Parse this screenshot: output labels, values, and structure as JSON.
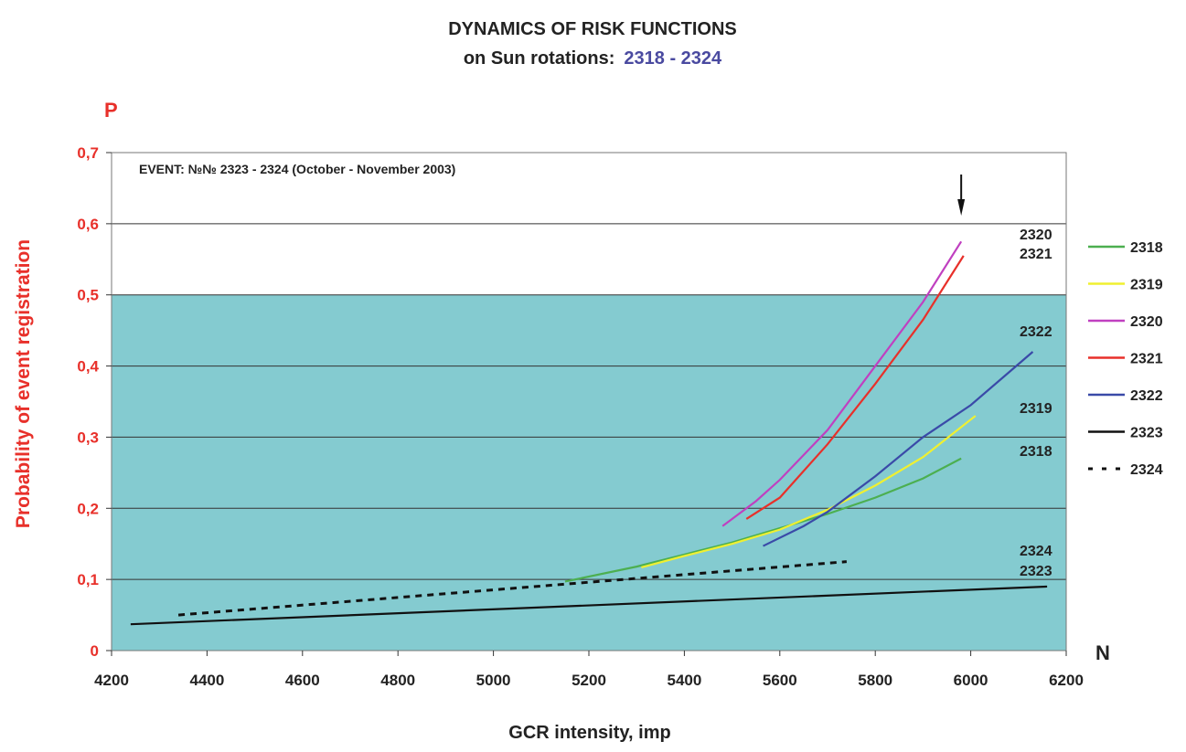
{
  "chart_data": {
    "type": "line",
    "title": "DYNAMICS OF RISK FUNCTIONS",
    "subtitle_prefix": "on Sun rotations:",
    "subtitle_range": "2318 - 2324",
    "annotation": "EVENT: №№ 2323 - 2324 (October - November  2003)",
    "xlabel": "GCR intensity,   imp",
    "ylabel": "Probability  of  event  registration",
    "y_axis_symbol": "P",
    "x_axis_symbol": "N",
    "xlim": [
      4200,
      6200
    ],
    "ylim": [
      0,
      0.7
    ],
    "x_ticks": [
      "4200",
      "4400",
      "4600",
      "4800",
      "5000",
      "5200",
      "5400",
      "5600",
      "5800",
      "6000",
      "6200"
    ],
    "y_ticks": [
      "0",
      "0,1",
      "0,2",
      "0,3",
      "0,4",
      "0,5",
      "0,6",
      "0,7"
    ],
    "shaded_band": [
      0,
      0.5
    ],
    "shaded_color": "#84CBD0",
    "arrow_marker_x": 5980,
    "legend_position": "right",
    "series": [
      {
        "name": "2318",
        "color": "#4caf50",
        "dash": false,
        "x": [
          5150,
          5300,
          5400,
          5500,
          5600,
          5700,
          5800,
          5900,
          5980
        ],
        "y": [
          0.097,
          0.118,
          0.135,
          0.152,
          0.172,
          0.192,
          0.215,
          0.242,
          0.27
        ]
      },
      {
        "name": "2319",
        "color": "#f0f030",
        "dash": false,
        "x": [
          5310,
          5400,
          5500,
          5600,
          5700,
          5800,
          5900,
          6010
        ],
        "y": [
          0.117,
          0.133,
          0.15,
          0.17,
          0.198,
          0.232,
          0.272,
          0.33
        ]
      },
      {
        "name": "2320",
        "color": "#c040c0",
        "dash": false,
        "x": [
          5480,
          5550,
          5600,
          5700,
          5800,
          5900,
          5980
        ],
        "y": [
          0.175,
          0.21,
          0.24,
          0.31,
          0.4,
          0.49,
          0.575
        ]
      },
      {
        "name": "2321",
        "color": "#e8302a",
        "dash": false,
        "x": [
          5530,
          5600,
          5700,
          5800,
          5900,
          5985
        ],
        "y": [
          0.185,
          0.215,
          0.29,
          0.375,
          0.465,
          0.555
        ]
      },
      {
        "name": "2322",
        "color": "#3a4aa8",
        "dash": false,
        "x": [
          5565,
          5650,
          5700,
          5800,
          5900,
          6000,
          6130
        ],
        "y": [
          0.147,
          0.175,
          0.195,
          0.245,
          0.3,
          0.345,
          0.42
        ]
      },
      {
        "name": "2323",
        "color": "#111111",
        "dash": false,
        "x": [
          4240,
          6160
        ],
        "y": [
          0.037,
          0.09
        ]
      },
      {
        "name": "2324",
        "color": "#111111",
        "dash": true,
        "x": [
          4340,
          5740
        ],
        "y": [
          0.05,
          0.125
        ]
      }
    ],
    "end_labels": [
      {
        "text": "2320",
        "series": "2320"
      },
      {
        "text": "2321",
        "series": "2321"
      },
      {
        "text": "2322",
        "series": "2322"
      },
      {
        "text": "2319",
        "series": "2319"
      },
      {
        "text": "2318",
        "series": "2318"
      },
      {
        "text": "2324",
        "series": "2324"
      },
      {
        "text": "2323",
        "series": "2323"
      }
    ]
  }
}
